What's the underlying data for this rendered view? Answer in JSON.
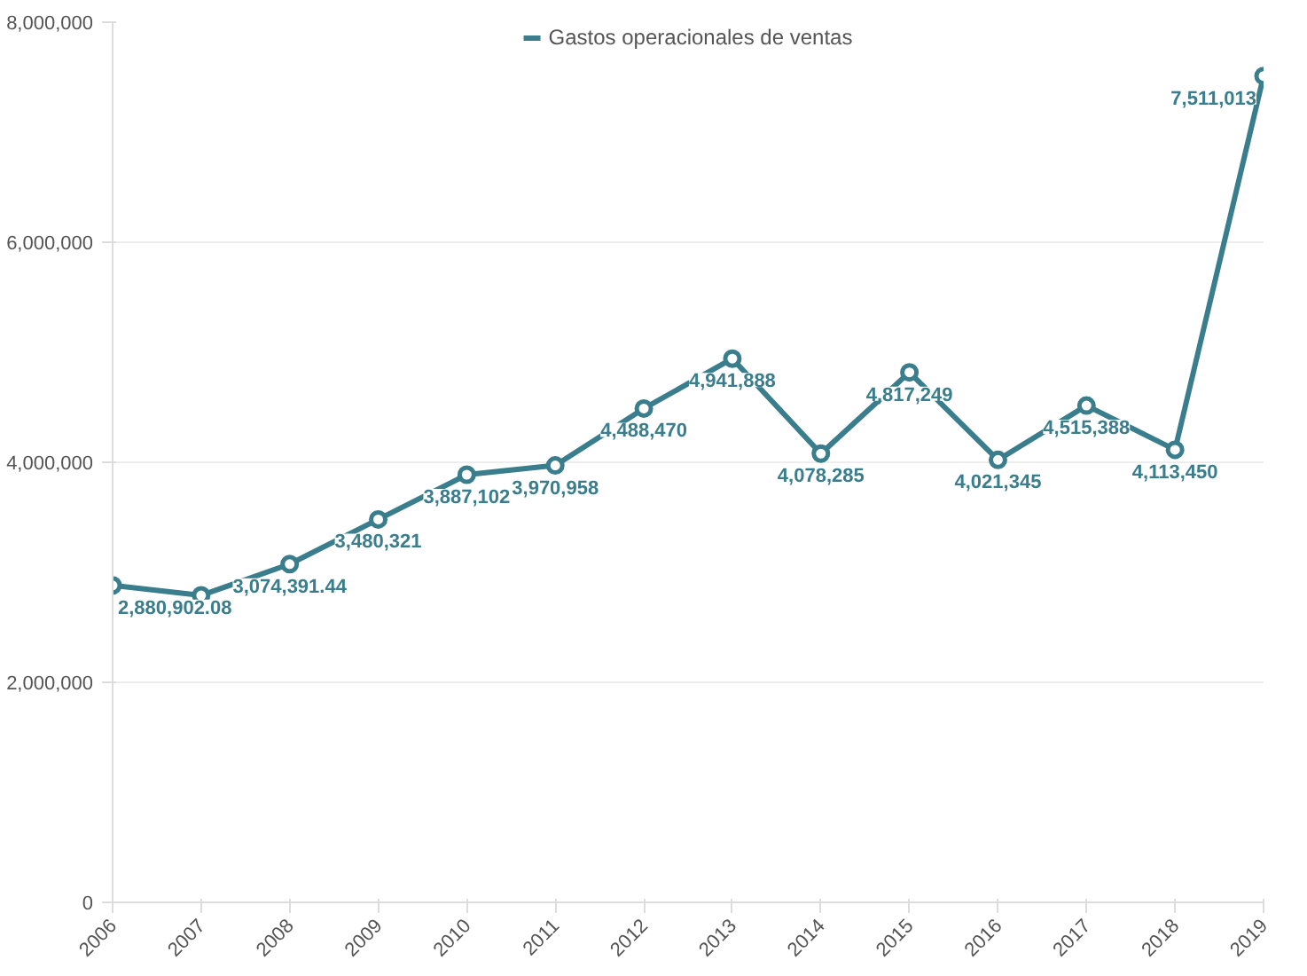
{
  "chart_data": {
    "type": "line",
    "categories": [
      "2006",
      "2007",
      "2008",
      "2009",
      "2010",
      "2011",
      "2012",
      "2013",
      "2014",
      "2015",
      "2016",
      "2017",
      "2018",
      "2019"
    ],
    "series": [
      {
        "name": "Gastos operacionales de ventas",
        "color": "#3a7d8c",
        "values": [
          2880902.08,
          2790000,
          3074391.44,
          3480321,
          3887102,
          3970958,
          4488470,
          4941888,
          4078285,
          4817249,
          4021345,
          4515388,
          4113450,
          7511013
        ],
        "value_labels": [
          "2,880,902.08",
          null,
          "3,074,391.44",
          "3,480,321",
          "3,887,102",
          "3,970,958",
          "4,488,470",
          "4,941,888",
          "4,078,285",
          "4,817,249",
          "4,021,345",
          "4,515,388",
          "4,113,450",
          "7,511,013"
        ]
      }
    ],
    "ylim": [
      0,
      8000000
    ],
    "yticks": [
      {
        "value": 0,
        "label": "0"
      },
      {
        "value": 2000000,
        "label": "2,000,000"
      },
      {
        "value": 4000000,
        "label": "4,000,000"
      },
      {
        "value": 6000000,
        "label": "6,000,000"
      },
      {
        "value": 8000000,
        "label": "8,000,000"
      }
    ],
    "grid": "y",
    "legend": "top",
    "marker": "circle",
    "line_style": "solid"
  }
}
